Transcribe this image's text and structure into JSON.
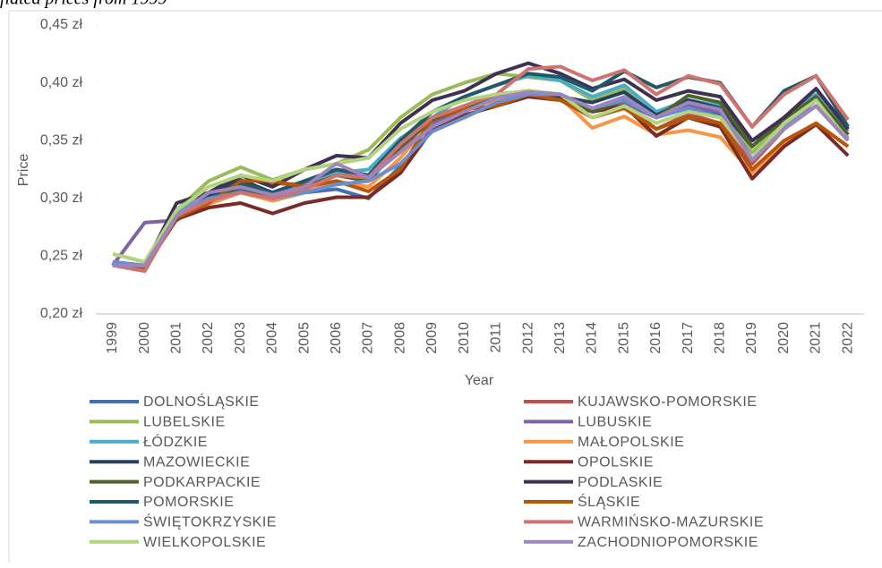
{
  "chart_data": {
    "type": "line",
    "subtitle": "flated prices from 1999",
    "x_label": "Year",
    "y_label": "Price",
    "categories": [
      "1999",
      "2000",
      "2001",
      "2002",
      "2003",
      "2004",
      "2005",
      "2006",
      "2007",
      "2008",
      "2009",
      "2010",
      "2011",
      "2012",
      "2013",
      "2014",
      "2015",
      "2016",
      "2017",
      "2018",
      "2019",
      "2020",
      "2021",
      "2022"
    ],
    "ylim": [
      0.2,
      0.45
    ],
    "yticks": [
      {
        "value": 0.2,
        "label": "0,20 zł"
      },
      {
        "value": 0.25,
        "label": "0,25 zł"
      },
      {
        "value": 0.3,
        "label": "0,30 zł"
      },
      {
        "value": 0.35,
        "label": "0,35 zł"
      },
      {
        "value": 0.4,
        "label": "0,40 zł"
      },
      {
        "value": 0.45,
        "label": "0,45 zł"
      }
    ],
    "grid": false,
    "legend": "bottom",
    "series": [
      {
        "name": "DOLNOŚLĄSKIE",
        "color": "#3f6fb5",
        "values": [
          0.245,
          0.242,
          0.285,
          0.3,
          0.308,
          0.298,
          0.305,
          0.308,
          0.3,
          0.328,
          0.36,
          0.37,
          0.383,
          0.39,
          0.388,
          0.378,
          0.385,
          0.37,
          0.38,
          0.373,
          0.34,
          0.365,
          0.385,
          0.355
        ]
      },
      {
        "name": "KUJAWSKO-POMORSKIE",
        "color": "#c0504d",
        "values": [
          0.242,
          0.242,
          0.285,
          0.302,
          0.32,
          0.313,
          0.312,
          0.322,
          0.316,
          0.343,
          0.365,
          0.378,
          0.388,
          0.393,
          0.39,
          0.375,
          0.382,
          0.36,
          0.373,
          0.365,
          0.33,
          0.36,
          0.38,
          0.35
        ]
      },
      {
        "name": "LUBELSKIE",
        "color": "#9bbb59",
        "values": [
          0.252,
          0.245,
          0.29,
          0.315,
          0.327,
          0.316,
          0.325,
          0.33,
          0.342,
          0.37,
          0.39,
          0.4,
          0.408,
          0.405,
          0.402,
          0.385,
          0.395,
          0.37,
          0.385,
          0.375,
          0.34,
          0.365,
          0.385,
          0.355
        ]
      },
      {
        "name": "LUBUSKIE",
        "color": "#8064a2",
        "values": [
          0.242,
          0.279,
          0.281,
          0.3,
          0.315,
          0.305,
          0.31,
          0.325,
          0.32,
          0.345,
          0.365,
          0.38,
          0.385,
          0.39,
          0.39,
          0.375,
          0.382,
          0.37,
          0.38,
          0.375,
          0.335,
          0.362,
          0.385,
          0.355
        ]
      },
      {
        "name": "ŁÓDZKIE",
        "color": "#4bacc6",
        "values": [
          0.245,
          0.242,
          0.288,
          0.305,
          0.315,
          0.305,
          0.31,
          0.322,
          0.325,
          0.352,
          0.37,
          0.388,
          0.398,
          0.406,
          0.402,
          0.388,
          0.398,
          0.375,
          0.385,
          0.38,
          0.345,
          0.37,
          0.39,
          0.358
        ]
      },
      {
        "name": "MAŁOPOLSKIE",
        "color": "#f79646",
        "values": [
          0.242,
          0.24,
          0.283,
          0.295,
          0.305,
          0.298,
          0.305,
          0.315,
          0.31,
          0.335,
          0.368,
          0.378,
          0.385,
          0.39,
          0.387,
          0.361,
          0.371,
          0.355,
          0.359,
          0.353,
          0.322,
          0.348,
          0.365,
          0.345
        ]
      },
      {
        "name": "MAZOWIECKIE",
        "color": "#254061",
        "values": [
          0.245,
          0.24,
          0.285,
          0.303,
          0.316,
          0.305,
          0.315,
          0.325,
          0.32,
          0.35,
          0.37,
          0.38,
          0.39,
          0.39,
          0.388,
          0.383,
          0.392,
          0.372,
          0.385,
          0.378,
          0.345,
          0.37,
          0.395,
          0.36
        ]
      },
      {
        "name": "OPOLSKIE",
        "color": "#7b2a27",
        "values": [
          0.242,
          0.24,
          0.282,
          0.292,
          0.296,
          0.287,
          0.296,
          0.301,
          0.301,
          0.322,
          0.36,
          0.372,
          0.38,
          0.388,
          0.385,
          0.375,
          0.38,
          0.354,
          0.37,
          0.362,
          0.317,
          0.345,
          0.364,
          0.337
        ]
      },
      {
        "name": "PODKARPACKIE",
        "color": "#4f6228",
        "values": [
          0.242,
          0.242,
          0.285,
          0.3,
          0.31,
          0.3,
          0.31,
          0.32,
          0.315,
          0.345,
          0.368,
          0.378,
          0.39,
          0.393,
          0.39,
          0.375,
          0.385,
          0.37,
          0.389,
          0.383,
          0.345,
          0.368,
          0.388,
          0.355
        ]
      },
      {
        "name": "PODLASKIE",
        "color": "#3f3151",
        "values": [
          0.242,
          0.242,
          0.296,
          0.305,
          0.32,
          0.31,
          0.325,
          0.337,
          0.335,
          0.365,
          0.385,
          0.393,
          0.408,
          0.417,
          0.408,
          0.395,
          0.403,
          0.385,
          0.393,
          0.388,
          0.35,
          0.37,
          0.395,
          0.36
        ]
      },
      {
        "name": "POMORSKIE",
        "color": "#215967",
        "values": [
          0.245,
          0.24,
          0.285,
          0.3,
          0.313,
          0.305,
          0.315,
          0.325,
          0.32,
          0.35,
          0.375,
          0.388,
          0.398,
          0.408,
          0.405,
          0.393,
          0.41,
          0.396,
          0.405,
          0.4,
          0.362,
          0.393,
          0.406,
          0.362
        ]
      },
      {
        "name": "ŚLĄSKIE",
        "color": "#b65708",
        "values": [
          0.242,
          0.24,
          0.283,
          0.296,
          0.315,
          0.315,
          0.31,
          0.315,
          0.306,
          0.325,
          0.37,
          0.377,
          0.38,
          0.39,
          0.385,
          0.37,
          0.378,
          0.36,
          0.37,
          0.365,
          0.325,
          0.35,
          0.365,
          0.345
        ]
      },
      {
        "name": "ŚWIĘTOKRZYSKIE",
        "color": "#6a8fcc",
        "values": [
          0.245,
          0.242,
          0.285,
          0.3,
          0.305,
          0.3,
          0.305,
          0.312,
          0.315,
          0.33,
          0.358,
          0.37,
          0.383,
          0.39,
          0.39,
          0.378,
          0.385,
          0.37,
          0.378,
          0.37,
          0.335,
          0.362,
          0.38,
          0.352
        ]
      },
      {
        "name": "WARMIŃSKO-MAZURSKIE",
        "color": "#d0726f",
        "values": [
          0.242,
          0.237,
          0.285,
          0.298,
          0.305,
          0.3,
          0.308,
          0.32,
          0.318,
          0.347,
          0.37,
          0.38,
          0.39,
          0.412,
          0.414,
          0.402,
          0.411,
          0.39,
          0.406,
          0.399,
          0.362,
          0.39,
          0.406,
          0.368
        ]
      },
      {
        "name": "WIELKOPOLSKIE",
        "color": "#b3d37f",
        "values": [
          0.252,
          0.245,
          0.29,
          0.31,
          0.32,
          0.315,
          0.325,
          0.33,
          0.335,
          0.36,
          0.375,
          0.385,
          0.39,
          0.393,
          0.39,
          0.37,
          0.38,
          0.365,
          0.375,
          0.37,
          0.335,
          0.365,
          0.385,
          0.35
        ]
      },
      {
        "name": "ZACHODNIOPOMORSKIE",
        "color": "#9d85bd",
        "values": [
          0.242,
          0.242,
          0.285,
          0.305,
          0.31,
          0.303,
          0.31,
          0.33,
          0.318,
          0.34,
          0.362,
          0.375,
          0.387,
          0.392,
          0.39,
          0.378,
          0.388,
          0.37,
          0.383,
          0.377,
          0.333,
          0.36,
          0.38,
          0.35
        ]
      }
    ]
  }
}
